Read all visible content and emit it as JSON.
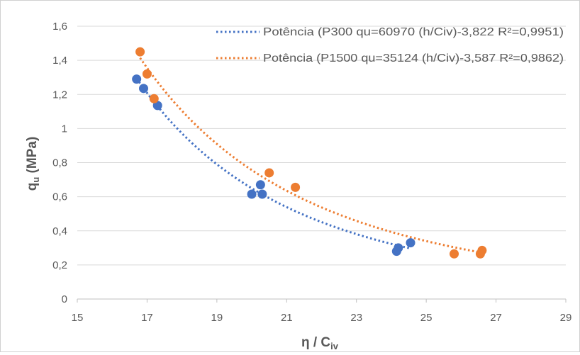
{
  "chart_data": {
    "type": "scatter",
    "xlabel": "η / C",
    "xlabel_sub": "iv",
    "ylabel": "q",
    "ylabel_sub": "u",
    "ylabel_unit": "(MPa)",
    "xlim": [
      15,
      29
    ],
    "ylim": [
      0,
      1.6
    ],
    "xticks": [
      "15",
      "17",
      "19",
      "21",
      "23",
      "25",
      "27",
      "29"
    ],
    "yticks": [
      "0",
      "0,2",
      "0,4",
      "0,6",
      "0,8",
      "1",
      "1,2",
      "1,4",
      "1,6"
    ],
    "grid": "horizontal",
    "legend_position": "top-right",
    "series": [
      {
        "color": "#4472C4",
        "points": [
          [
            16.7,
            1.29
          ],
          [
            16.9,
            1.235
          ],
          [
            17.3,
            1.135
          ],
          [
            20.0,
            0.615
          ],
          [
            20.25,
            0.67
          ],
          [
            20.3,
            0.615
          ],
          [
            24.15,
            0.28
          ],
          [
            24.2,
            0.3
          ],
          [
            24.55,
            0.33
          ]
        ],
        "trendline": {
          "label": "Potência (P300 qu=60970 (h/Civ)-3,822 R²=0,9951)",
          "coefficient": 60970,
          "exponent": -3.822,
          "x_range": [
            16.7,
            24.55
          ]
        }
      },
      {
        "color": "#ED7D31",
        "points": [
          [
            16.8,
            1.45
          ],
          [
            17.0,
            1.32
          ],
          [
            17.2,
            1.175
          ],
          [
            20.5,
            0.74
          ],
          [
            21.25,
            0.655
          ],
          [
            25.8,
            0.265
          ],
          [
            26.55,
            0.265
          ],
          [
            26.6,
            0.285
          ]
        ],
        "trendline": {
          "label": "Potência (P1500 qu=35124 (h/Civ)-3,587 R²=0,9862)",
          "coefficient": 35124,
          "exponent": -3.587,
          "x_range": [
            16.8,
            26.6
          ]
        }
      }
    ]
  }
}
